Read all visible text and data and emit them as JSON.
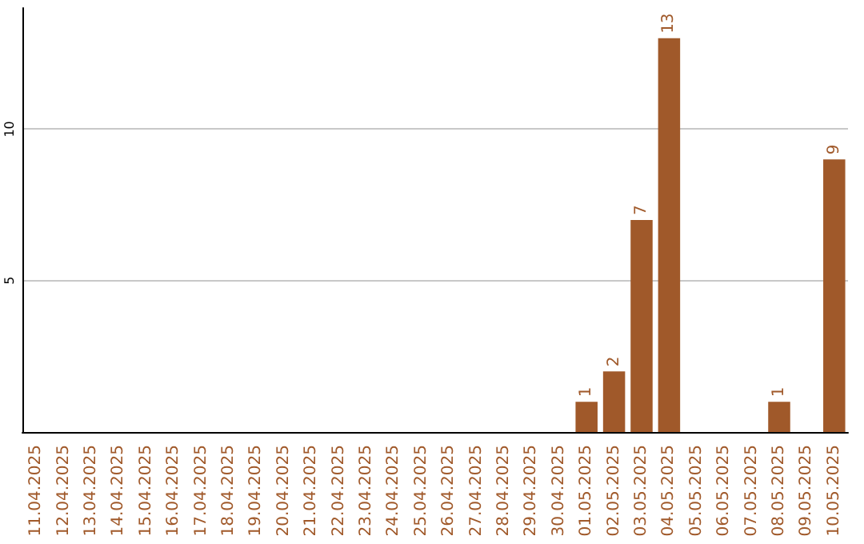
{
  "chart_data": {
    "type": "bar",
    "categories": [
      "11.04.2025",
      "12.04.2025",
      "13.04.2025",
      "14.04.2025",
      "15.04.2025",
      "16.04.2025",
      "17.04.2025",
      "18.04.2025",
      "19.04.2025",
      "20.04.2025",
      "21.04.2025",
      "22.04.2025",
      "23.04.2025",
      "24.04.2025",
      "25.04.2025",
      "26.04.2025",
      "27.04.2025",
      "28.04.2025",
      "29.04.2025",
      "30.04.2025",
      "01.05.2025",
      "02.05.2025",
      "03.05.2025",
      "04.05.2025",
      "05.05.2025",
      "06.05.2025",
      "07.05.2025",
      "08.05.2025",
      "09.05.2025",
      "10.05.2025"
    ],
    "values": [
      0,
      0,
      0,
      0,
      0,
      0,
      0,
      0,
      0,
      0,
      0,
      0,
      0,
      0,
      0,
      0,
      0,
      0,
      0,
      0,
      1,
      2,
      7,
      13,
      0,
      0,
      0,
      1,
      0,
      9
    ],
    "value_labels": [
      null,
      null,
      null,
      null,
      null,
      null,
      null,
      null,
      null,
      null,
      null,
      null,
      null,
      null,
      null,
      null,
      null,
      null,
      null,
      null,
      "1",
      "2",
      "7",
      "13",
      null,
      null,
      null,
      "1",
      null,
      "9"
    ],
    "color": "#a0592a",
    "ylim": [
      0,
      14
    ],
    "yticks": [
      5,
      10
    ],
    "grid": "y"
  }
}
